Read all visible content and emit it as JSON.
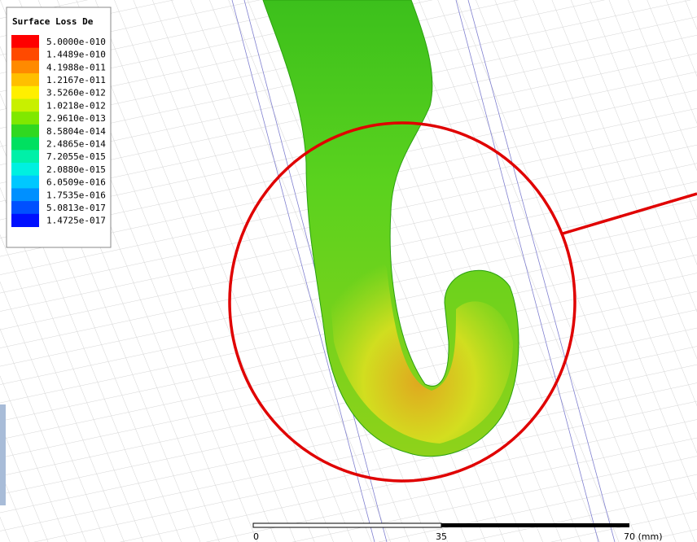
{
  "legend": {
    "title": "Surface Loss De",
    "entries": [
      {
        "label": "5.0000e-010",
        "color": "#ff0000"
      },
      {
        "label": "1.4489e-010",
        "color": "#ff4a00"
      },
      {
        "label": "4.1988e-011",
        "color": "#ff8a00"
      },
      {
        "label": "1.2167e-011",
        "color": "#ffbf00"
      },
      {
        "label": "3.5260e-012",
        "color": "#ffef00"
      },
      {
        "label": "1.0218e-012",
        "color": "#c8f000"
      },
      {
        "label": "2.9610e-013",
        "color": "#80e800"
      },
      {
        "label": "8.5804e-014",
        "color": "#30d820"
      },
      {
        "label": "2.4865e-014",
        "color": "#00e060"
      },
      {
        "label": "7.2055e-015",
        "color": "#00f0a8"
      },
      {
        "label": "2.0880e-015",
        "color": "#00f0e0"
      },
      {
        "label": "6.0509e-016",
        "color": "#00c8ff"
      },
      {
        "label": "1.7535e-016",
        "color": "#0090ff"
      },
      {
        "label": "5.0813e-017",
        "color": "#0050ff"
      },
      {
        "label": "1.4725e-017",
        "color": "#0010ff"
      }
    ]
  },
  "scale_bar": {
    "labels": [
      "0",
      "35",
      "70 (mm)"
    ]
  }
}
